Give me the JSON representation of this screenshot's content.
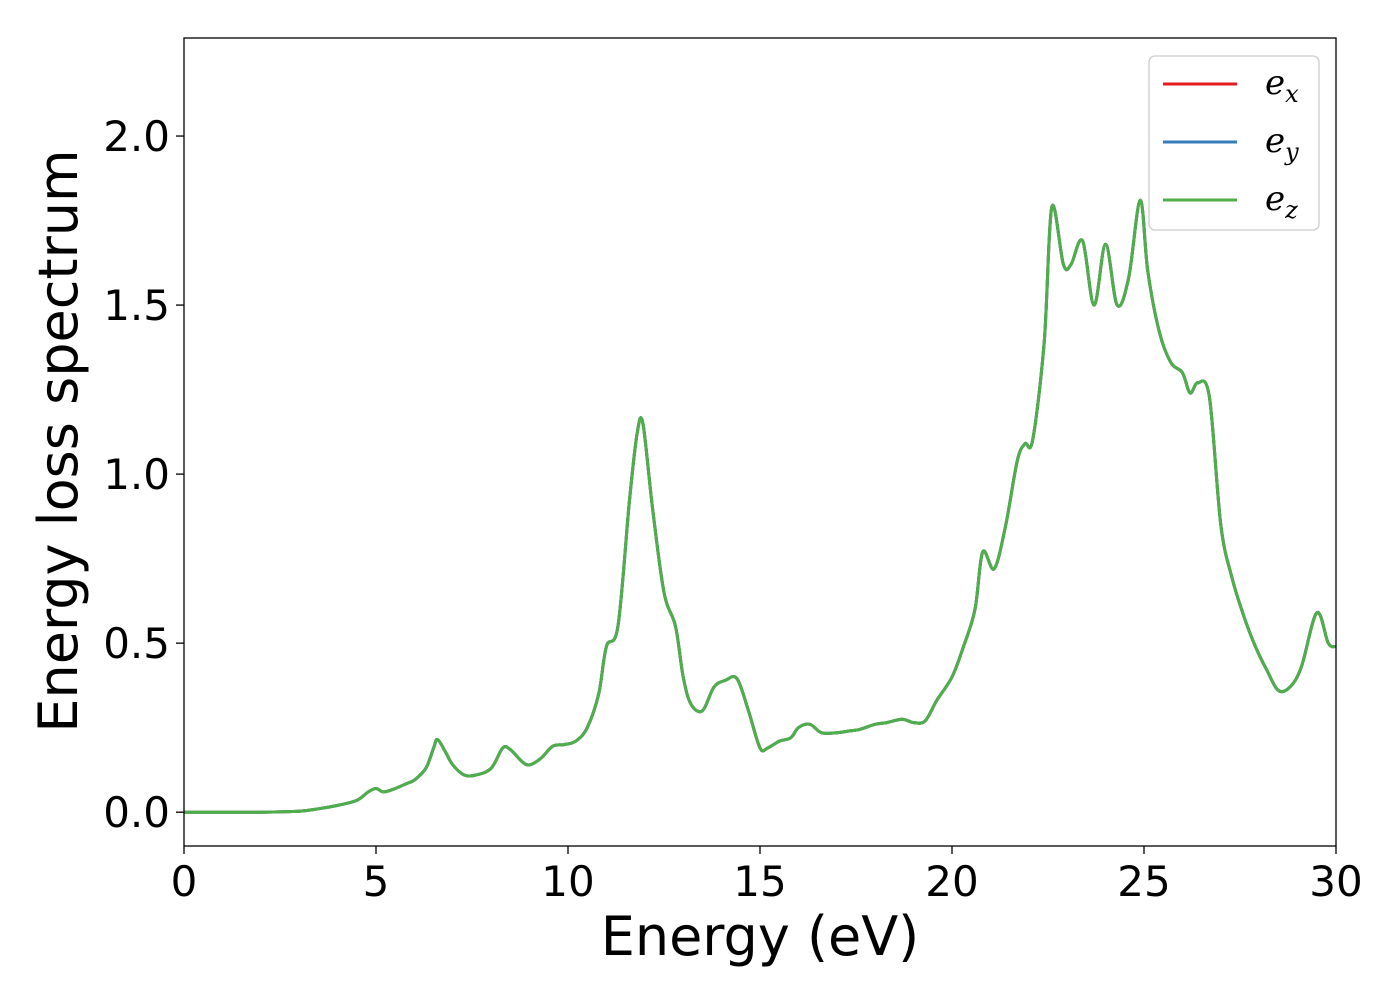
{
  "chart_data": {
    "type": "line",
    "xlabel": "Energy (eV)",
    "ylabel": "Energy loss spectrum",
    "xlim": [
      0,
      30
    ],
    "ylim": [
      -0.1,
      2.29
    ],
    "xticks": [
      0,
      5,
      10,
      15,
      20,
      25,
      30
    ],
    "xtick_labels": [
      "0",
      "5",
      "10",
      "15",
      "20",
      "25",
      "30"
    ],
    "yticks": [
      0.0,
      0.5,
      1.0,
      1.5,
      2.0
    ],
    "ytick_labels": [
      "0.0",
      "0.5",
      "1.0",
      "1.5",
      "2.0"
    ],
    "grid": false,
    "legend": {
      "position": "top-right",
      "entries": [
        {
          "base": "e",
          "sub": "x",
          "color": "#e41a1c"
        },
        {
          "base": "e",
          "sub": "y",
          "color": "#377eb8"
        },
        {
          "base": "e",
          "sub": "z",
          "color": "#4daf4a"
        }
      ]
    },
    "x": [
      0,
      1,
      2,
      3,
      3.5,
      4,
      4.5,
      4.8,
      5,
      5.2,
      5.5,
      5.8,
      6,
      6.3,
      6.5,
      6.6,
      6.8,
      7,
      7.3,
      7.6,
      8,
      8.3,
      8.5,
      8.8,
      9,
      9.3,
      9.6,
      9.9,
      10.2,
      10.5,
      10.8,
      11,
      11.3,
      11.6,
      11.8,
      11.95,
      12.2,
      12.5,
      12.8,
      13,
      13.2,
      13.5,
      13.8,
      14.1,
      14.4,
      14.7,
      15,
      15.2,
      15.5,
      15.8,
      16,
      16.3,
      16.6,
      17,
      17.3,
      17.6,
      18,
      18.3,
      18.7,
      19,
      19.3,
      19.6,
      20,
      20.3,
      20.6,
      20.8,
      21.1,
      21.4,
      21.7,
      21.9,
      22.1,
      22.4,
      22.6,
      22.9,
      23.1,
      23.4,
      23.7,
      24,
      24.3,
      24.6,
      24.9,
      25.1,
      25.4,
      25.7,
      26,
      26.2,
      26.4,
      26.7,
      27,
      27.3,
      27.6,
      27.9,
      28.2,
      28.5,
      28.8,
      29.1,
      29.5,
      29.8,
      30
    ],
    "series": [
      {
        "name": "e_x",
        "color": "#e41a1c",
        "values": [
          0,
          0,
          0,
          0.003,
          0.01,
          0.02,
          0.035,
          0.06,
          0.07,
          0.06,
          0.07,
          0.085,
          0.095,
          0.13,
          0.19,
          0.215,
          0.18,
          0.14,
          0.11,
          0.11,
          0.13,
          0.19,
          0.185,
          0.15,
          0.14,
          0.16,
          0.195,
          0.2,
          0.21,
          0.25,
          0.35,
          0.49,
          0.55,
          0.92,
          1.12,
          1.15,
          0.9,
          0.65,
          0.55,
          0.4,
          0.32,
          0.3,
          0.37,
          0.39,
          0.395,
          0.3,
          0.19,
          0.19,
          0.21,
          0.22,
          0.25,
          0.26,
          0.235,
          0.235,
          0.24,
          0.245,
          0.26,
          0.265,
          0.275,
          0.265,
          0.27,
          0.33,
          0.4,
          0.49,
          0.6,
          0.77,
          0.72,
          0.85,
          1.04,
          1.09,
          1.1,
          1.39,
          1.79,
          1.62,
          1.62,
          1.69,
          1.5,
          1.68,
          1.5,
          1.58,
          1.81,
          1.6,
          1.42,
          1.33,
          1.3,
          1.24,
          1.27,
          1.23,
          0.85,
          0.69,
          0.58,
          0.49,
          0.42,
          0.36,
          0.37,
          0.43,
          0.59,
          0.5,
          0.49
        ]
      },
      {
        "name": "e_y",
        "color": "#377eb8",
        "values": [
          0,
          0,
          0,
          0.003,
          0.01,
          0.02,
          0.035,
          0.06,
          0.07,
          0.06,
          0.07,
          0.085,
          0.095,
          0.13,
          0.19,
          0.215,
          0.18,
          0.14,
          0.11,
          0.11,
          0.13,
          0.19,
          0.185,
          0.15,
          0.14,
          0.16,
          0.195,
          0.2,
          0.21,
          0.25,
          0.35,
          0.49,
          0.55,
          0.92,
          1.12,
          1.15,
          0.9,
          0.65,
          0.55,
          0.4,
          0.32,
          0.3,
          0.37,
          0.39,
          0.395,
          0.3,
          0.19,
          0.19,
          0.21,
          0.22,
          0.25,
          0.26,
          0.235,
          0.235,
          0.24,
          0.245,
          0.26,
          0.265,
          0.275,
          0.265,
          0.27,
          0.33,
          0.4,
          0.49,
          0.6,
          0.77,
          0.72,
          0.85,
          1.04,
          1.09,
          1.1,
          1.39,
          1.79,
          1.62,
          1.62,
          1.69,
          1.5,
          1.68,
          1.5,
          1.58,
          1.81,
          1.6,
          1.42,
          1.33,
          1.3,
          1.24,
          1.27,
          1.23,
          0.85,
          0.69,
          0.58,
          0.49,
          0.42,
          0.36,
          0.37,
          0.43,
          0.59,
          0.5,
          0.49
        ]
      },
      {
        "name": "e_z",
        "color": "#4daf4a",
        "values": [
          0,
          0,
          0,
          0.003,
          0.01,
          0.02,
          0.035,
          0.06,
          0.07,
          0.06,
          0.07,
          0.085,
          0.095,
          0.13,
          0.19,
          0.215,
          0.18,
          0.14,
          0.11,
          0.11,
          0.13,
          0.19,
          0.185,
          0.15,
          0.14,
          0.16,
          0.195,
          0.2,
          0.21,
          0.25,
          0.35,
          0.49,
          0.55,
          0.92,
          1.12,
          1.15,
          0.9,
          0.65,
          0.55,
          0.4,
          0.32,
          0.3,
          0.37,
          0.39,
          0.395,
          0.3,
          0.19,
          0.19,
          0.21,
          0.22,
          0.25,
          0.26,
          0.235,
          0.235,
          0.24,
          0.245,
          0.26,
          0.265,
          0.275,
          0.265,
          0.27,
          0.33,
          0.4,
          0.49,
          0.6,
          0.77,
          0.72,
          0.85,
          1.04,
          1.09,
          1.1,
          1.39,
          1.79,
          1.62,
          1.62,
          1.69,
          1.5,
          1.68,
          1.5,
          1.58,
          1.81,
          1.6,
          1.42,
          1.33,
          1.3,
          1.24,
          1.27,
          1.23,
          0.85,
          0.69,
          0.58,
          0.49,
          0.42,
          0.36,
          0.37,
          0.43,
          0.59,
          0.5,
          0.49
        ]
      }
    ]
  }
}
